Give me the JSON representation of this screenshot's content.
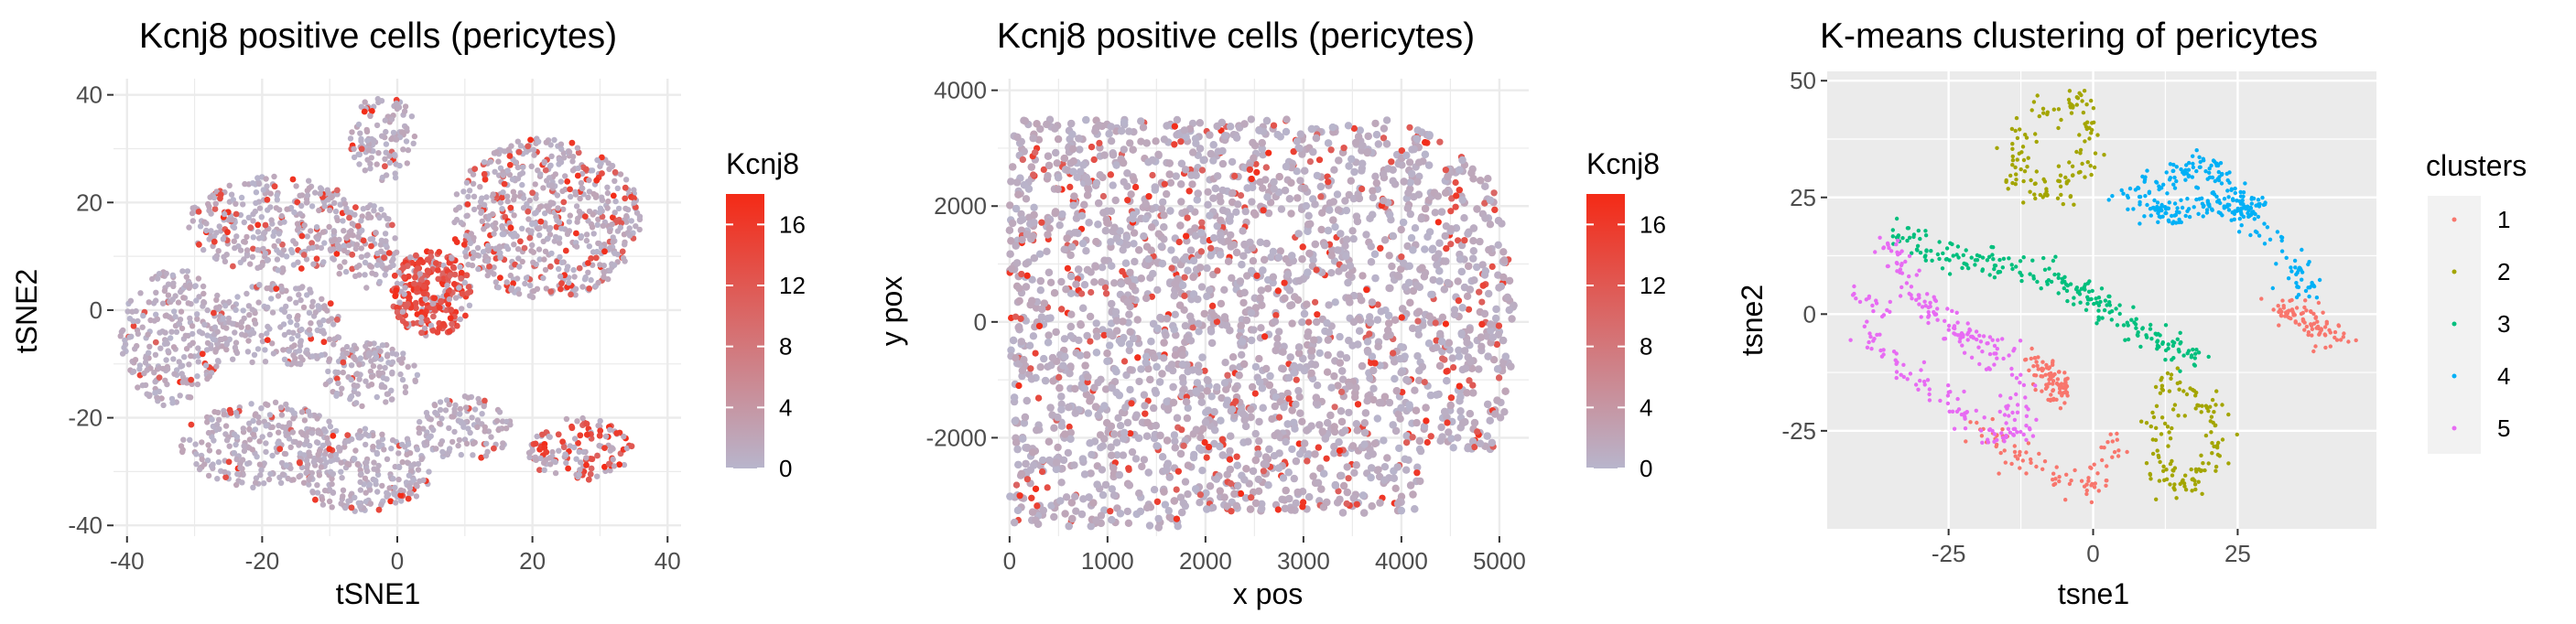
{
  "colors": {
    "low": "#b8b5cc",
    "high": "#f42a16",
    "panel_bg_light": "#ffffff",
    "panel_bg_gray": "#ebebeb",
    "grid_light": "#ebebeb",
    "grid_gray": "#ffffff",
    "cluster_colors": [
      "#f8766d",
      "#a3a500",
      "#00bf7d",
      "#00b0f6",
      "#e76bf3"
    ]
  },
  "chart_data": [
    {
      "type": "scatter",
      "title": "Kcnj8 positive cells (pericytes)",
      "xlabel": "tSNE1",
      "ylabel": "tSNE2",
      "xlim": [
        -42,
        42
      ],
      "ylim": [
        -42,
        43
      ],
      "xticks": [
        -40,
        -20,
        0,
        20,
        40
      ],
      "yticks": [
        -40,
        -20,
        0,
        20,
        40
      ],
      "xtick_labels": [
        "-40",
        "-20",
        "0",
        "20",
        "40"
      ],
      "ytick_labels": [
        "-40",
        "-20",
        "0",
        "20",
        "40"
      ],
      "theme": "light",
      "grid": true,
      "color_variable": "Kcnj8",
      "legend": {
        "title": "Kcnj8",
        "position": "right",
        "range": [
          0,
          18
        ],
        "ticks": [
          0,
          4,
          8,
          12,
          16
        ],
        "tick_labels": [
          "0",
          "4",
          "8",
          "12",
          "16"
        ]
      },
      "regions": [
        {
          "cx": -33,
          "cy": -5,
          "rx": 8,
          "ry": 13,
          "n": 260,
          "hi": 0.05
        },
        {
          "cx": -18,
          "cy": 16,
          "rx": 13,
          "ry": 9,
          "n": 320,
          "hi": 0.12
        },
        {
          "cx": -18,
          "cy": -3,
          "rx": 10,
          "ry": 8,
          "n": 200,
          "hi": 0.06
        },
        {
          "cx": -20,
          "cy": -25,
          "rx": 12,
          "ry": 8,
          "n": 260,
          "hi": 0.05
        },
        {
          "cx": -5,
          "cy": -30,
          "rx": 10,
          "ry": 8,
          "n": 240,
          "hi": 0.05
        },
        {
          "cx": -2,
          "cy": 32,
          "rx": 5,
          "ry": 8,
          "n": 110,
          "hi": 0.05
        },
        {
          "cx": -5,
          "cy": 12,
          "rx": 5,
          "ry": 8,
          "n": 110,
          "hi": 0.1
        },
        {
          "cx": 5,
          "cy": 3,
          "rx": 6,
          "ry": 8,
          "n": 260,
          "hi": 0.78
        },
        {
          "cx": 22,
          "cy": 17,
          "rx": 14,
          "ry": 15,
          "n": 620,
          "hi": 0.2
        },
        {
          "cx": 27,
          "cy": -26,
          "rx": 8,
          "ry": 6,
          "n": 140,
          "hi": 0.35
        },
        {
          "cx": 10,
          "cy": -22,
          "rx": 7,
          "ry": 6,
          "n": 120,
          "hi": 0.07
        },
        {
          "cx": -4,
          "cy": -12,
          "rx": 7,
          "ry": 6,
          "n": 130,
          "hi": 0.06
        }
      ]
    },
    {
      "type": "scatter",
      "title": "Kcnj8 positive cells (pericytes)",
      "xlabel": "x pos",
      "ylabel": "y pox",
      "xlim": [
        -120,
        5300
      ],
      "ylim": [
        -3700,
        4200
      ],
      "xticks": [
        0,
        1000,
        2000,
        3000,
        4000,
        5000
      ],
      "yticks": [
        -2000,
        0,
        2000,
        4000
      ],
      "xtick_labels": [
        "0",
        "1000",
        "2000",
        "3000",
        "4000",
        "5000"
      ],
      "ytick_labels": [
        "-2000",
        "0",
        "2000",
        "4000"
      ],
      "theme": "light",
      "grid": true,
      "color_variable": "Kcnj8",
      "legend": {
        "title": "Kcnj8",
        "position": "right",
        "range": [
          0,
          18
        ],
        "ticks": [
          0,
          4,
          8,
          12,
          16
        ],
        "tick_labels": [
          "0",
          "4",
          "8",
          "12",
          "16"
        ]
      },
      "regions": [
        {
          "x0": 0,
          "x1": 5150,
          "y0": -3550,
          "y1": 3700,
          "n": 4200,
          "hi": 0.14
        }
      ]
    },
    {
      "type": "scatter",
      "title": "K-means clustering of pericytes",
      "xlabel": "tsne1",
      "ylabel": "tsne2",
      "xlim": [
        -46,
        49
      ],
      "ylim": [
        -46,
        52
      ],
      "xticks": [
        -25,
        0,
        25
      ],
      "yticks": [
        -25,
        0,
        25,
        50
      ],
      "xtick_labels": [
        "-25",
        "0",
        "25"
      ],
      "ytick_labels": [
        "-25",
        "0",
        "25",
        "50"
      ],
      "theme": "gray",
      "grid": true,
      "legend": {
        "title": "clusters",
        "position": "right",
        "entries": [
          "1",
          "2",
          "3",
          "4",
          "5"
        ]
      },
      "clusters": [
        {
          "name": "1",
          "paths": [
            [
              [
                -20,
                -24
              ],
              [
                -12,
                -32
              ],
              [
                0,
                -38
              ],
              [
                4,
                -26
              ]
            ],
            [
              [
                32,
                2
              ],
              [
                38,
                -2
              ],
              [
                42,
                -6
              ]
            ],
            [
              [
                -10,
                -10
              ],
              [
                -5,
                -18
              ]
            ]
          ],
          "n": 260
        },
        {
          "name": "2",
          "paths": [
            [
              [
                -10,
                42
              ],
              [
                -2,
                46
              ],
              [
                0,
                35
              ],
              [
                -6,
                25
              ],
              [
                -14,
                30
              ],
              [
                -12,
                40
              ]
            ],
            [
              [
                12,
                -14
              ],
              [
                20,
                -20
              ],
              [
                22,
                -30
              ],
              [
                16,
                -38
              ],
              [
                10,
                -32
              ],
              [
                12,
                -22
              ]
            ]
          ],
          "n": 260
        },
        {
          "name": "3",
          "paths": [
            [
              [
                -35,
                18
              ],
              [
                -25,
                12
              ],
              [
                -10,
                10
              ],
              [
                0,
                3
              ],
              [
                10,
                -5
              ],
              [
                18,
                -10
              ]
            ]
          ],
          "n": 230
        },
        {
          "name": "4",
          "paths": [
            [
              [
                5,
                25
              ],
              [
                12,
                28
              ],
              [
                18,
                32
              ],
              [
                22,
                30
              ],
              [
                28,
                22
              ],
              [
                35,
                10
              ],
              [
                38,
                5
              ]
            ],
            [
              [
                8,
                22
              ],
              [
                15,
                22
              ],
              [
                25,
                25
              ],
              [
                28,
                20
              ]
            ]
          ],
          "n": 300
        },
        {
          "name": "5",
          "paths": [
            [
              [
                -40,
                5
              ],
              [
                -38,
                -5
              ],
              [
                -32,
                -12
              ],
              [
                -25,
                -18
              ],
              [
                -18,
                -26
              ],
              [
                -12,
                -25
              ],
              [
                -14,
                -15
              ]
            ],
            [
              [
                -36,
                15
              ],
              [
                -30,
                3
              ],
              [
                -22,
                -5
              ],
              [
                -15,
                -10
              ]
            ]
          ],
          "n": 260
        }
      ]
    }
  ]
}
